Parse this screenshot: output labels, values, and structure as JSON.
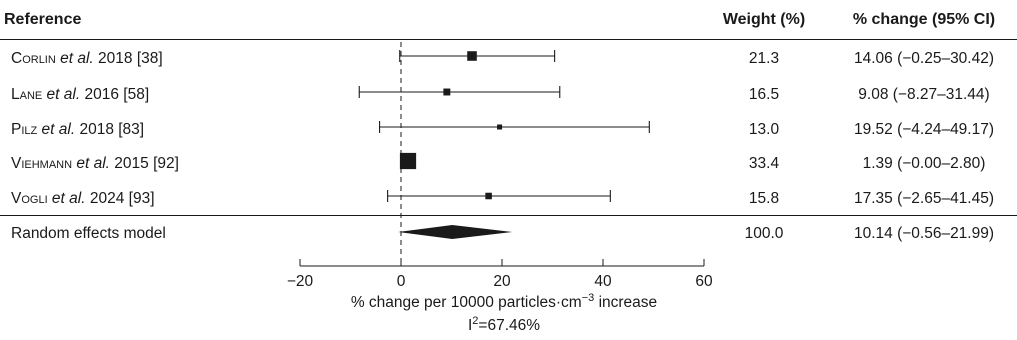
{
  "chart_data": {
    "type": "forest",
    "columns": {
      "study": "Reference",
      "weight": "Weight (%)",
      "effect": "% change (95% CI)"
    },
    "studies": [
      {
        "author": "Corlin",
        "suffix": " et al.",
        "year": " 2018 [38]",
        "estimate": 14.06,
        "lower": -0.25,
        "upper": 30.42,
        "weight": "21.3",
        "ci_text": "14.06 (−0.25–30.42)"
      },
      {
        "author": "Lane",
        "suffix": " et al.",
        "year": " 2016 [58]",
        "estimate": 9.08,
        "lower": -8.27,
        "upper": 31.44,
        "weight": "16.5",
        "ci_text": "9.08 (−8.27–31.44)"
      },
      {
        "author": "Pilz",
        "suffix": " et al.",
        "year": " 2018 [83]",
        "estimate": 19.52,
        "lower": -4.24,
        "upper": 49.17,
        "weight": "13.0",
        "ci_text": "19.52 (−4.24–49.17)"
      },
      {
        "author": "Viehmann",
        "suffix": " et al.",
        "year": " 2015 [92]",
        "estimate": 1.39,
        "lower": -0.0,
        "upper": 2.8,
        "weight": "33.4",
        "ci_text": "1.39 (−0.00–2.80)"
      },
      {
        "author": "Vogli",
        "suffix": " et al.",
        "year": " 2024 [93]",
        "estimate": 17.35,
        "lower": -2.65,
        "upper": 41.45,
        "weight": "15.8",
        "ci_text": "17.35 (−2.65–41.45)"
      }
    ],
    "summary": {
      "label": "Random effects model",
      "estimate": 10.14,
      "lower": -0.56,
      "upper": 21.99,
      "weight": "100.0",
      "ci_text": "10.14 (−0.56–21.99)"
    },
    "x_axis": {
      "range": [
        -20,
        60
      ],
      "ticks": [
        -20,
        0,
        20,
        40,
        60
      ],
      "tick_labels": [
        "−20",
        "0",
        "20",
        "40",
        "60"
      ],
      "label_prefix": "% change per 10000 particles·cm",
      "label_superscript": "−3",
      "label_suffix": " increase"
    },
    "heterogeneity": {
      "prefix": "I",
      "superscript": "2",
      "value": "=67.46%"
    },
    "reference_line": 0
  }
}
